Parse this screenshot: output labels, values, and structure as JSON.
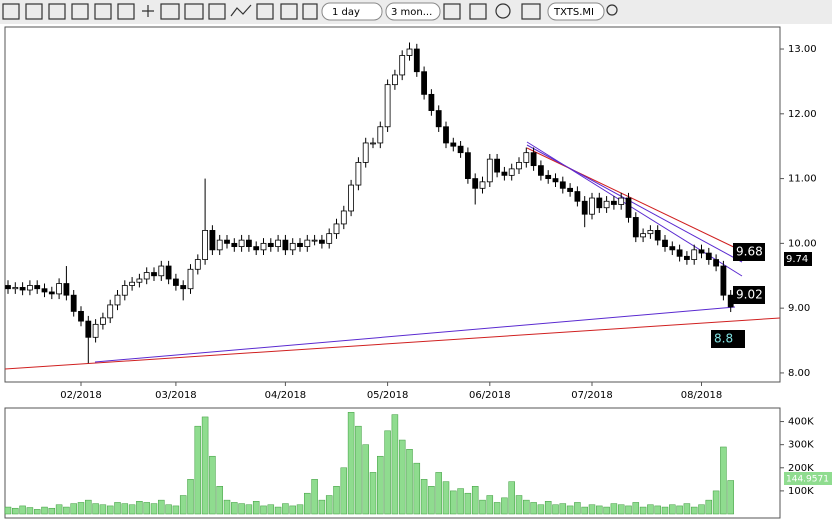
{
  "toolbar": {
    "interval": "1 day",
    "range": "3 mon...",
    "symbol": "TXTS.MI"
  },
  "chart_data": [
    {
      "type": "candlestick",
      "categories": [
        null,
        null,
        null,
        null,
        null,
        null,
        null,
        null,
        null,
        null,
        "02/2018",
        null,
        null,
        null,
        null,
        null,
        null,
        null,
        null,
        null,
        null,
        null,
        null,
        "03/2018",
        null,
        null,
        null,
        null,
        null,
        null,
        null,
        null,
        null,
        null,
        null,
        null,
        null,
        null,
        "04/2018",
        null,
        null,
        null,
        null,
        null,
        null,
        null,
        null,
        null,
        null,
        null,
        null,
        null,
        "05/2018",
        null,
        null,
        null,
        null,
        null,
        null,
        null,
        null,
        null,
        null,
        null,
        null,
        null,
        "06/2018",
        null,
        null,
        null,
        null,
        null,
        null,
        null,
        null,
        null,
        null,
        null,
        null,
        null,
        "07/2018",
        null,
        null,
        null,
        null,
        null,
        null,
        null,
        null,
        null,
        null,
        null,
        null,
        null,
        null,
        "08/2018",
        null,
        null,
        null,
        null
      ],
      "open": [
        9.35,
        9.3,
        9.32,
        9.28,
        9.35,
        9.3,
        9.25,
        9.22,
        9.38,
        9.2,
        8.95,
        8.8,
        8.55,
        8.75,
        8.85,
        9.05,
        9.2,
        9.35,
        9.4,
        9.45,
        9.55,
        9.5,
        9.65,
        9.45,
        9.35,
        9.3,
        9.6,
        9.75,
        10.2,
        9.9,
        10.05,
        10.0,
        9.95,
        10.05,
        9.95,
        9.9,
        10.0,
        9.95,
        10.05,
        9.9,
        10.0,
        9.95,
        10.05,
        10.05,
        10.0,
        10.15,
        10.3,
        10.5,
        10.9,
        11.25,
        11.55,
        11.55,
        11.8,
        12.45,
        12.6,
        12.9,
        13.0,
        12.65,
        12.3,
        12.05,
        11.8,
        11.55,
        11.5,
        11.4,
        11.0,
        10.85,
        10.95,
        11.3,
        11.1,
        11.05,
        11.15,
        11.25,
        11.4,
        11.2,
        11.05,
        11.0,
        10.95,
        10.85,
        10.8,
        10.65,
        10.45,
        10.7,
        10.55,
        10.65,
        10.6,
        10.7,
        10.4,
        10.1,
        10.15,
        10.2,
        10.05,
        9.95,
        9.9,
        9.8,
        9.75,
        9.9,
        9.85,
        9.75,
        9.65,
        9.2
      ],
      "high": [
        9.43,
        9.4,
        9.4,
        9.43,
        9.43,
        9.38,
        9.33,
        9.46,
        9.65,
        9.28,
        9.03,
        8.88,
        8.83,
        8.93,
        9.13,
        9.28,
        9.43,
        9.48,
        9.53,
        9.63,
        9.63,
        9.73,
        9.73,
        9.53,
        9.43,
        9.68,
        9.83,
        11.0,
        10.28,
        10.13,
        10.13,
        10.08,
        10.13,
        10.13,
        10.03,
        10.08,
        10.08,
        10.13,
        10.13,
        10.08,
        10.08,
        10.13,
        10.13,
        10.13,
        10.23,
        10.38,
        10.58,
        10.98,
        11.33,
        11.63,
        11.63,
        11.88,
        12.53,
        12.68,
        12.98,
        13.1,
        13.08,
        12.73,
        12.38,
        12.13,
        11.88,
        11.63,
        11.58,
        11.48,
        11.08,
        11.03,
        11.38,
        11.38,
        11.18,
        11.23,
        11.33,
        11.48,
        11.48,
        11.28,
        11.13,
        11.08,
        11.03,
        10.93,
        10.88,
        10.73,
        10.78,
        10.78,
        10.73,
        10.73,
        10.78,
        10.78,
        10.48,
        10.23,
        10.28,
        10.28,
        10.13,
        10.03,
        9.98,
        9.88,
        9.98,
        9.98,
        9.93,
        9.83,
        9.73,
        9.28
      ],
      "low": [
        9.22,
        9.22,
        9.2,
        9.2,
        9.22,
        9.17,
        9.14,
        9.14,
        9.12,
        8.87,
        8.72,
        8.15,
        8.47,
        8.67,
        8.77,
        8.97,
        9.12,
        9.27,
        9.32,
        9.37,
        9.42,
        9.42,
        9.37,
        9.27,
        9.12,
        9.22,
        9.52,
        9.67,
        9.82,
        9.82,
        9.92,
        9.87,
        9.87,
        9.87,
        9.82,
        9.82,
        9.87,
        9.87,
        9.82,
        9.82,
        9.87,
        9.87,
        9.97,
        9.92,
        9.92,
        10.07,
        10.22,
        10.42,
        10.82,
        11.17,
        11.47,
        11.47,
        11.72,
        12.37,
        12.52,
        12.82,
        12.57,
        12.22,
        11.97,
        11.72,
        11.47,
        11.42,
        11.32,
        10.92,
        10.6,
        10.77,
        10.87,
        11.02,
        10.97,
        10.97,
        11.07,
        11.17,
        11.12,
        10.97,
        10.92,
        10.87,
        10.77,
        10.72,
        10.57,
        10.25,
        10.37,
        10.47,
        10.47,
        10.52,
        10.52,
        10.32,
        10.02,
        10.02,
        10.07,
        9.97,
        9.87,
        9.82,
        9.72,
        9.67,
        9.67,
        9.77,
        9.67,
        9.57,
        9.12,
        8.94
      ],
      "close": [
        9.3,
        9.32,
        9.28,
        9.35,
        9.3,
        9.25,
        9.22,
        9.38,
        9.2,
        8.95,
        8.8,
        8.55,
        8.75,
        8.85,
        9.05,
        9.2,
        9.35,
        9.4,
        9.45,
        9.55,
        9.5,
        9.65,
        9.45,
        9.35,
        9.3,
        9.6,
        9.75,
        10.2,
        9.9,
        10.05,
        10.0,
        9.95,
        10.05,
        9.95,
        9.9,
        10.0,
        9.95,
        10.05,
        9.9,
        10.0,
        9.95,
        10.05,
        10.05,
        10.0,
        10.15,
        10.3,
        10.5,
        10.9,
        11.25,
        11.55,
        11.55,
        11.8,
        12.45,
        12.6,
        12.9,
        13.0,
        12.65,
        12.3,
        12.05,
        11.8,
        11.55,
        11.5,
        11.4,
        11.0,
        10.85,
        10.95,
        11.3,
        11.1,
        11.05,
        11.15,
        11.25,
        11.4,
        11.2,
        11.05,
        11.0,
        10.95,
        10.85,
        10.8,
        10.65,
        10.45,
        10.7,
        10.55,
        10.65,
        10.6,
        10.7,
        10.4,
        10.1,
        10.15,
        10.2,
        10.05,
        9.95,
        9.9,
        9.8,
        9.75,
        9.9,
        9.85,
        9.75,
        9.65,
        9.2,
        9.02
      ],
      "up_color": "#ffffff",
      "down_color": "#000000",
      "ylim": [
        7.86,
        13.34
      ],
      "yticks": [
        {
          "value": 8,
          "label": "8.00"
        },
        {
          "value": 9,
          "label": "9.00"
        },
        {
          "value": 10,
          "label": "10.00"
        },
        {
          "value": 11,
          "label": "11.00"
        },
        {
          "value": 12,
          "label": "12.00"
        },
        {
          "value": 13,
          "label": "13.00"
        }
      ],
      "price_markers": [
        9.68,
        9.74,
        9.02,
        8.8
      ],
      "grid": false
    },
    {
      "type": "bar",
      "color": "#8fdc8f",
      "values": [
        30000,
        25000,
        35000,
        28000,
        20000,
        30000,
        25000,
        40000,
        30000,
        45000,
        50000,
        60000,
        45000,
        40000,
        35000,
        50000,
        45000,
        40000,
        55000,
        50000,
        45000,
        60000,
        40000,
        35000,
        80000,
        150000,
        380000,
        420000,
        250000,
        120000,
        60000,
        50000,
        45000,
        40000,
        55000,
        35000,
        40000,
        30000,
        45000,
        35000,
        40000,
        90000,
        150000,
        60000,
        80000,
        120000,
        200000,
        440000,
        380000,
        300000,
        180000,
        250000,
        360000,
        430000,
        320000,
        280000,
        220000,
        150000,
        120000,
        180000,
        140000,
        100000,
        110000,
        90000,
        120000,
        60000,
        80000,
        50000,
        70000,
        140000,
        80000,
        60000,
        50000,
        40000,
        55000,
        40000,
        45000,
        35000,
        50000,
        30000,
        40000,
        35000,
        30000,
        45000,
        40000,
        35000,
        50000,
        30000,
        40000,
        35000,
        30000,
        40000,
        35000,
        45000,
        30000,
        40000,
        60000,
        100000,
        290000,
        144957
      ],
      "ylim": [
        0,
        450000
      ],
      "yticks": [
        {
          "value": 100000,
          "label": "100K"
        },
        {
          "value": 200000,
          "label": "200K"
        },
        {
          "value": 300000,
          "label": "300K"
        },
        {
          "value": 400000,
          "label": "400K"
        }
      ],
      "volume_marker": "144.9571",
      "grid": false
    }
  ]
}
